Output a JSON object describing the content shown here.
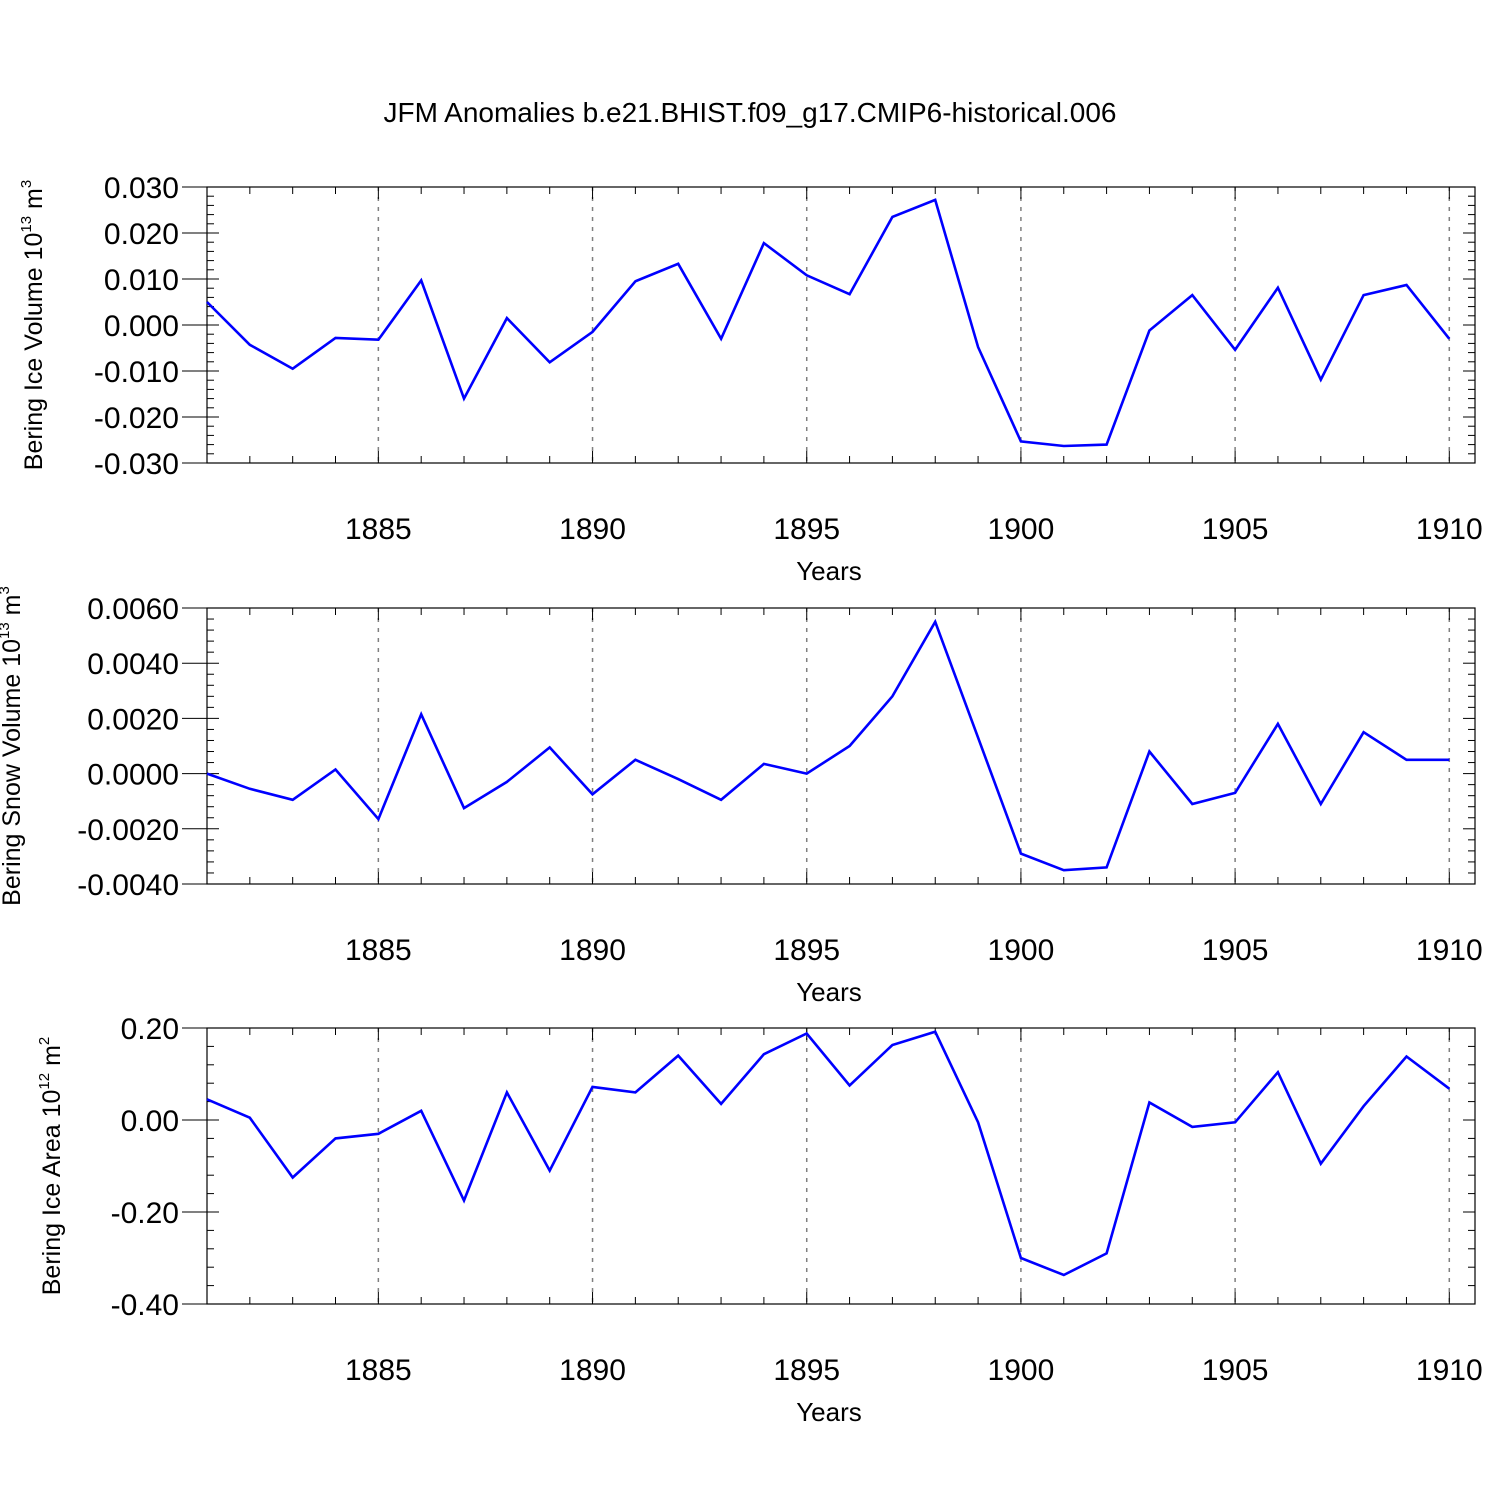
{
  "title": "JFM Anomalies b.e21.BHIST.f09_g17.CMIP6-historical.006",
  "colors": {
    "line": "#0000ff",
    "axis": "#000000",
    "grid": "#7f7f7f"
  },
  "chart_data": [
    {
      "type": "line",
      "ylabel_main": "Bering Ice Volume 10",
      "ylabel_exp": "13",
      "ylabel_unit": " m",
      "ylabel_unit_exp": "3",
      "xlabel": "Years",
      "xlim": [
        1881,
        1910.6
      ],
      "ylim": [
        -0.03,
        0.03
      ],
      "xticks": [
        1885,
        1890,
        1895,
        1900,
        1905,
        1910
      ],
      "xtick_labels": [
        "1885",
        "1890",
        "1895",
        "1900",
        "1905",
        "1910"
      ],
      "yticks": [
        -0.03,
        -0.02,
        -0.01,
        0,
        0.01,
        0.02,
        0.03
      ],
      "ytick_labels": [
        "-0.030",
        "-0.020",
        "-0.010",
        "0.000",
        "0.010",
        "0.020",
        "0.030"
      ],
      "grid": "vertical dashed at major x ticks",
      "series": [
        {
          "x": [
            1881,
            1882,
            1883,
            1884,
            1885,
            1886,
            1887,
            1888,
            1889,
            1890,
            1891,
            1892,
            1893,
            1894,
            1895,
            1896,
            1897,
            1898,
            1899,
            1900,
            1901,
            1902,
            1903,
            1904,
            1905,
            1906,
            1907,
            1908,
            1909,
            1910
          ],
          "y": [
            0.005,
            -0.0043,
            -0.0095,
            -0.0028,
            -0.0032,
            0.0097,
            -0.016,
            0.0015,
            -0.0081,
            -0.0015,
            0.0095,
            0.0133,
            -0.003,
            0.0178,
            0.0108,
            0.0067,
            0.0235,
            0.0272,
            -0.0048,
            -0.0253,
            -0.0263,
            -0.026,
            -0.0012,
            0.0065,
            -0.0054,
            0.0081,
            -0.0119,
            0.0065,
            0.0087,
            -0.003
          ]
        }
      ]
    },
    {
      "type": "line",
      "ylabel_main": "Bering Snow Volume 10",
      "ylabel_exp": "13",
      "ylabel_unit": " m",
      "ylabel_unit_exp": "3",
      "xlabel": "Years",
      "xlim": [
        1881,
        1910.6
      ],
      "ylim": [
        -0.004,
        0.006
      ],
      "xticks": [
        1885,
        1890,
        1895,
        1900,
        1905,
        1910
      ],
      "xtick_labels": [
        "1885",
        "1890",
        "1895",
        "1900",
        "1905",
        "1910"
      ],
      "yticks": [
        -0.004,
        -0.002,
        0,
        0.002,
        0.004,
        0.006
      ],
      "ytick_labels": [
        "-0.0040",
        "-0.0020",
        "0.0000",
        "0.0020",
        "0.0040",
        "0.0060"
      ],
      "grid": "vertical dashed at major x ticks",
      "series": [
        {
          "x": [
            1881,
            1882,
            1883,
            1884,
            1885,
            1886,
            1887,
            1888,
            1889,
            1890,
            1891,
            1892,
            1893,
            1894,
            1895,
            1896,
            1897,
            1898,
            1899,
            1900,
            1901,
            1902,
            1903,
            1904,
            1905,
            1906,
            1907,
            1908,
            1909,
            1910
          ],
          "y": [
            0.0,
            -0.00055,
            -0.00095,
            0.00015,
            -0.00165,
            0.00215,
            -0.00125,
            -0.0003,
            0.00095,
            -0.00075,
            0.0005,
            -0.0002,
            -0.00095,
            0.00035,
            0.0,
            0.001,
            0.0028,
            0.0055,
            0.0013,
            -0.0029,
            -0.0035,
            -0.0034,
            0.0008,
            -0.0011,
            -0.0007,
            0.0018,
            -0.0011,
            0.0015,
            0.0005,
            0.0005
          ]
        }
      ]
    },
    {
      "type": "line",
      "ylabel_main": "Bering Ice Area 10",
      "ylabel_exp": "12",
      "ylabel_unit": " m",
      "ylabel_unit_exp": "2",
      "xlabel": "Years",
      "xlim": [
        1881,
        1910.6
      ],
      "ylim": [
        -0.4,
        0.2
      ],
      "xticks": [
        1885,
        1890,
        1895,
        1900,
        1905,
        1910
      ],
      "xtick_labels": [
        "1885",
        "1890",
        "1895",
        "1900",
        "1905",
        "1910"
      ],
      "yticks": [
        -0.4,
        -0.2,
        0,
        0.2
      ],
      "ytick_labels": [
        "-0.40",
        "-0.20",
        "0.00",
        "0.20"
      ],
      "grid": "vertical dashed at major x ticks",
      "series": [
        {
          "x": [
            1881,
            1882,
            1883,
            1884,
            1885,
            1886,
            1887,
            1888,
            1889,
            1890,
            1891,
            1892,
            1893,
            1894,
            1895,
            1896,
            1897,
            1898,
            1899,
            1900,
            1901,
            1902,
            1903,
            1904,
            1905,
            1906,
            1907,
            1908,
            1909,
            1910
          ],
          "y": [
            0.045,
            0.005,
            -0.125,
            -0.04,
            -0.03,
            0.02,
            -0.175,
            0.06,
            -0.11,
            0.072,
            0.06,
            0.14,
            0.035,
            0.143,
            0.188,
            0.075,
            0.163,
            0.192,
            -0.005,
            -0.3,
            -0.337,
            -0.29,
            0.038,
            -0.015,
            -0.005,
            0.104,
            -0.095,
            0.03,
            0.138,
            0.068
          ]
        }
      ]
    }
  ]
}
